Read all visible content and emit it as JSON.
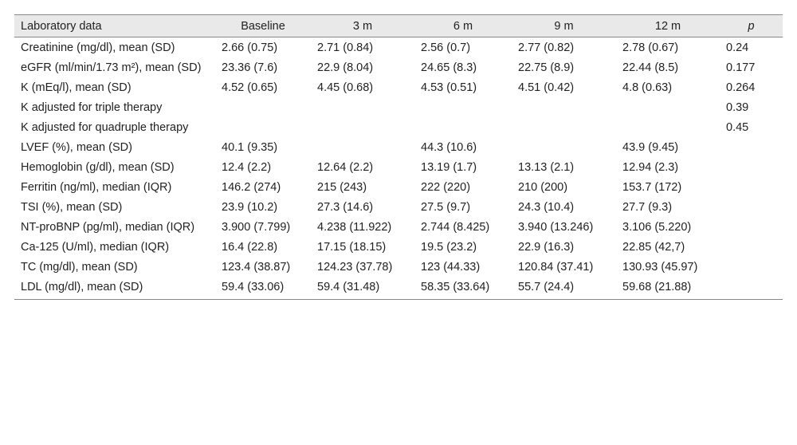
{
  "table": {
    "header": [
      "Laboratory data",
      "Baseline",
      "3 m",
      "6 m",
      "9 m",
      "12 m",
      "p"
    ],
    "rows": [
      [
        "Creatinine (mg/dl), mean (SD)",
        "2.66 (0.75)",
        "2.71 (0.84)",
        "2.56 (0.7)",
        "2.77 (0.82)",
        "2.78 (0.67)",
        "0.24"
      ],
      [
        "eGFR (ml/min/1.73 m²), mean (SD)",
        "23.36 (7.6)",
        "22.9 (8.04)",
        "24.65 (8.3)",
        "22.75 (8.9)",
        "22.44 (8.5)",
        "0.177"
      ],
      [
        "K (mEq/l), mean (SD)",
        "4.52 (0.65)",
        "4.45 (0.68)",
        "4.53 (0.51)",
        "4.51 (0.42)",
        "4.8 (0.63)",
        "0.264"
      ],
      [
        "K adjusted for triple therapy",
        null,
        null,
        null,
        null,
        null,
        "0.39"
      ],
      [
        "K adjusted for quadruple therapy",
        null,
        null,
        null,
        null,
        null,
        "0.45"
      ],
      [
        "LVEF (%), mean (SD)",
        "40.1 (9.35)",
        null,
        "44.3 (10.6)",
        null,
        "43.9 (9.45)",
        null
      ],
      [
        "Hemoglobin (g/dl), mean (SD)",
        "12.4 (2.2)",
        "12.64 (2.2)",
        "13.19 (1.7)",
        "13.13 (2.1)",
        "12.94 (2.3)",
        null
      ],
      [
        "Ferritin (ng/ml), median (IQR)",
        "146.2 (274)",
        "215 (243)",
        "222 (220)",
        "210 (200)",
        "153.7 (172)",
        null
      ],
      [
        "TSI (%), mean (SD)",
        "23.9 (10.2)",
        "27.3 (14.6)",
        "27.5 (9.7)",
        "24.3 (10.4)",
        "27.7 (9.3)",
        null
      ],
      [
        "NT-proBNP (pg/ml), median (IQR)",
        "3.900 (7.799)",
        "4.238 (11.922)",
        "2.744 (8.425)",
        "3.940 (13.246)",
        "3.106 (5.220)",
        null
      ],
      [
        "Ca-125 (U/ml), median (IQR)",
        "16.4 (22.8)",
        "17.15 (18.15)",
        "19.5 (23.2)",
        "22.9 (16.3)",
        "22.85 (42,7)",
        null
      ],
      [
        "TC (mg/dl), mean (SD)",
        "123.4 (38.87)",
        "124.23 (37.78)",
        "123 (44.33)",
        "120.84 (37.41)",
        "130.93 (45.97)",
        null
      ],
      [
        "LDL (mg/dl), mean (SD)",
        "59.4 (33.06)",
        "59.4 (31.48)",
        "58.35 (33.64)",
        "55.7 (24.4)",
        "59.68 (21.88)",
        null
      ]
    ]
  }
}
